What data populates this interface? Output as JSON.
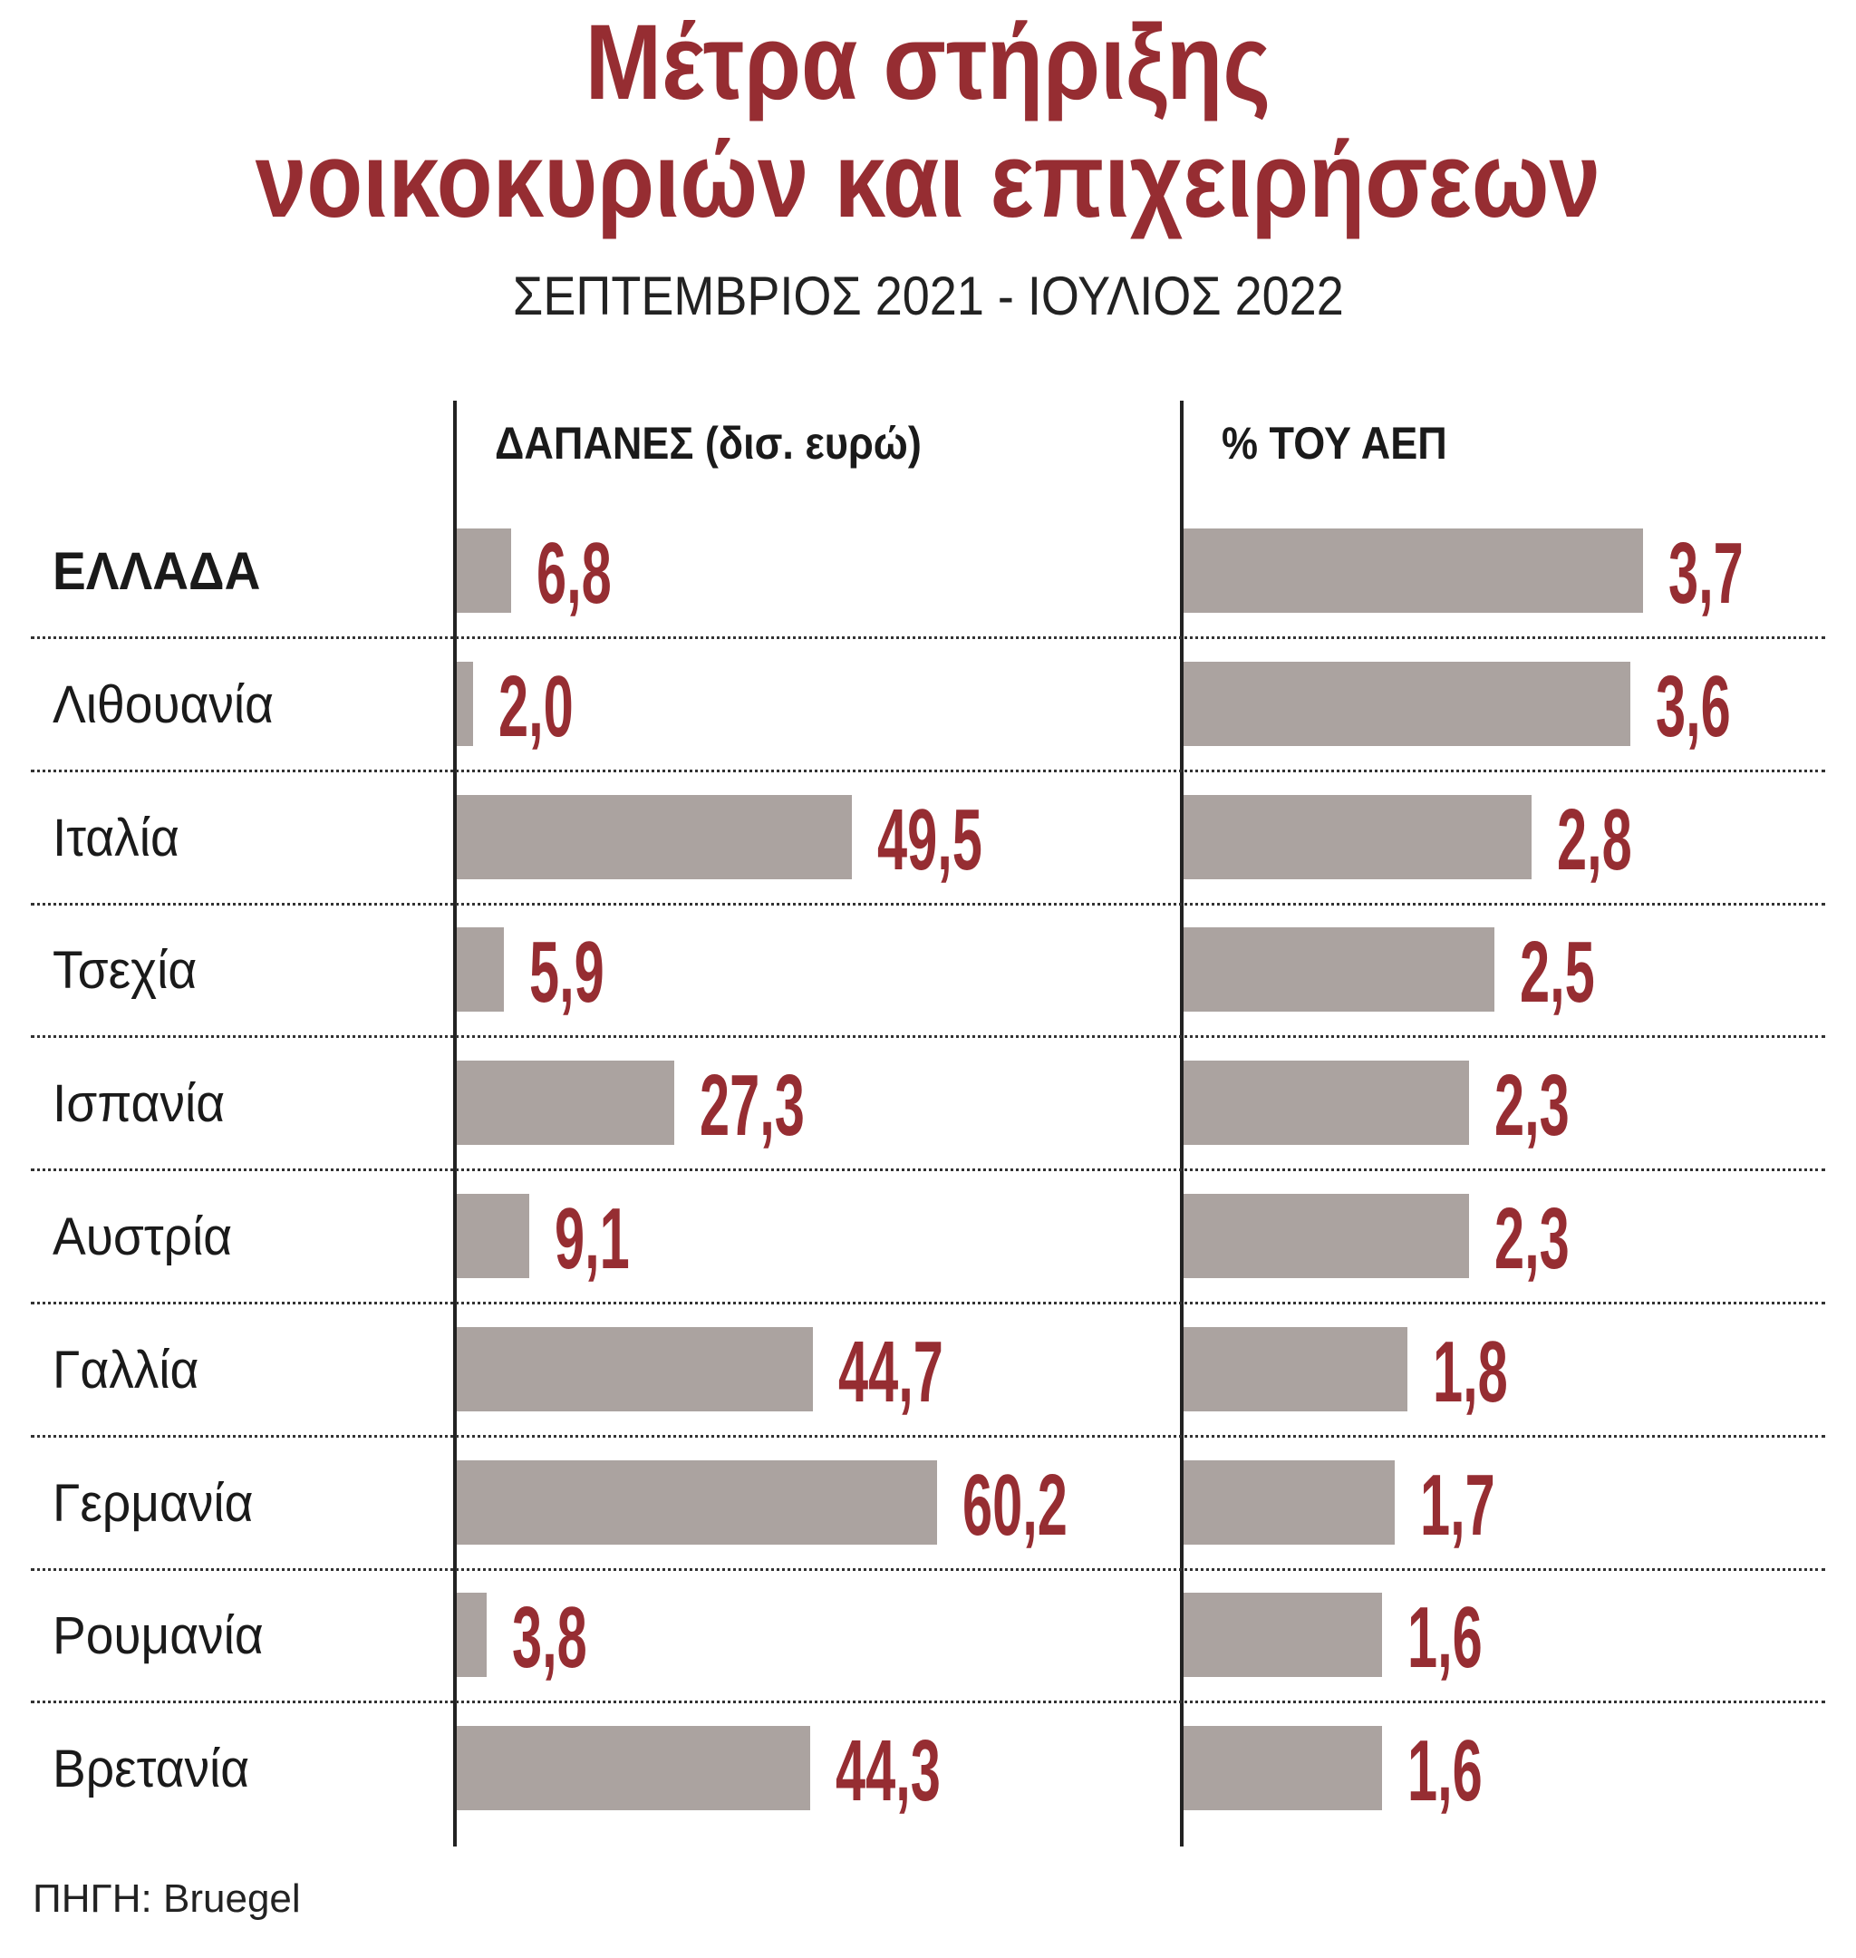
{
  "title_line1": "Μέτρα στήριξης",
  "title_line2": "νοικοκυριών και επιχειρήσεων",
  "subtitle": "ΣΕΠΤΕΜΒΡΙΟΣ 2021 - ΙΟΥΛΙΟΣ 2022",
  "source": "ΠΗΓΗ: Bruegel",
  "colors": {
    "bar": "#aba3a0",
    "value": "#962d32",
    "title": "#962d32"
  },
  "chart_data": {
    "type": "bar",
    "orientation": "horizontal",
    "title": "Μέτρα στήριξης νοικοκυριών και επιχειρήσεων",
    "subtitle": "ΣΕΠΤΕΜΒΡΙΟΣ 2021 - ΙΟΥΛΙΟΣ 2022",
    "categories": [
      "ΕΛΛΑΔΑ",
      "Λιθουανία",
      "Ιταλία",
      "Τσεχία",
      "Ισπανία",
      "Αυστρία",
      "Γαλλία",
      "Γερμανία",
      "Ρουμανία",
      "Βρετανία"
    ],
    "series": [
      {
        "name": "ΔΑΠΑΝΕΣ (δισ. ευρώ)",
        "values": [
          6.8,
          2.0,
          49.5,
          5.9,
          27.3,
          9.1,
          44.7,
          60.2,
          3.8,
          44.3
        ],
        "labels": [
          "6,8",
          "2,0",
          "49,5",
          "5,9",
          "27,3",
          "9,1",
          "44,7",
          "60,2",
          "3,8",
          "44,3"
        ],
        "xlim": [
          0,
          62
        ]
      },
      {
        "name": "% ΤΟΥ ΑΕΠ",
        "values": [
          3.7,
          3.6,
          2.8,
          2.5,
          2.3,
          2.3,
          1.8,
          1.7,
          1.6,
          1.6
        ],
        "labels": [
          "3,7",
          "3,6",
          "2,8",
          "2,5",
          "2,3",
          "2,3",
          "1,8",
          "1,7",
          "1,6",
          "1,6"
        ],
        "xlim": [
          0,
          4
        ]
      }
    ],
    "grid": false,
    "legend": "none"
  }
}
